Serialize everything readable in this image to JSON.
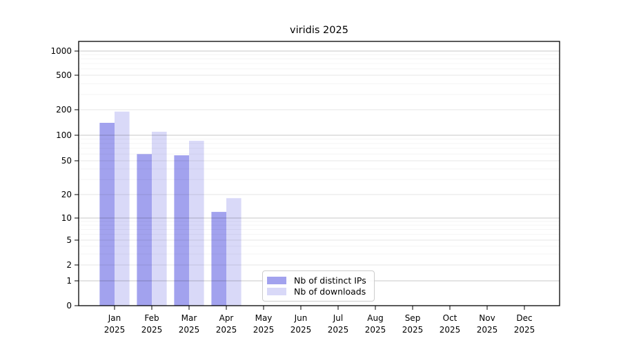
{
  "chart_data": {
    "type": "bar",
    "title": "viridis 2025",
    "categories": [
      "Jan",
      "Feb",
      "Mar",
      "Apr",
      "May",
      "Jun",
      "Jul",
      "Aug",
      "Sep",
      "Oct",
      "Nov",
      "Dec"
    ],
    "x_tick_year": "2025",
    "series": [
      {
        "name": "Nb of distinct IPs",
        "color": "#a2a2ee",
        "values": [
          140,
          60,
          58,
          12,
          0,
          0,
          0,
          0,
          0,
          0,
          0,
          0
        ]
      },
      {
        "name": "Nb of downloads",
        "color": "#d9d9f8",
        "values": [
          190,
          110,
          86,
          18,
          0,
          0,
          0,
          0,
          0,
          0,
          0,
          0
        ]
      }
    ],
    "y_ticks": [
      0,
      1,
      2,
      5,
      10,
      20,
      50,
      100,
      200,
      500,
      1000
    ],
    "ylim": [
      0,
      1000
    ],
    "yscale": "symlog",
    "xlabel": "",
    "ylabel": "",
    "grid": true,
    "legend_position": "inside-bottom-center"
  }
}
